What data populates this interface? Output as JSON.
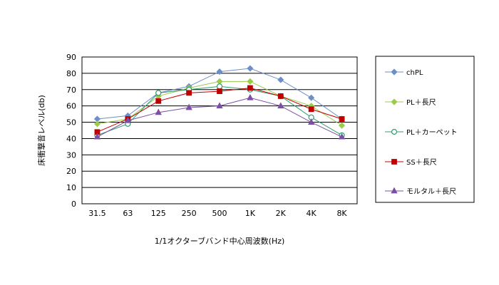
{
  "chart_data": {
    "type": "line",
    "title": "",
    "xlabel": "1/1オクターブバンド中心周波数(Hz)",
    "ylabel": "床衝撃音レベル(db)",
    "ylim": [
      0,
      90
    ],
    "yticks": [
      0,
      10,
      20,
      30,
      40,
      50,
      60,
      70,
      80,
      90
    ],
    "categories": [
      "31.5",
      "63",
      "125",
      "250",
      "500",
      "1K",
      "2K",
      "4K",
      "8K"
    ],
    "grid": true,
    "legend_position": "right",
    "series": [
      {
        "name": "chPL",
        "color": "#6E8EC8",
        "marker": "diamond",
        "values": [
          52,
          54,
          68,
          72,
          81,
          83,
          76,
          65,
          52
        ]
      },
      {
        "name": "PL＋長尺",
        "color": "#9BCB4B",
        "marker": "diamond",
        "values": [
          49,
          52,
          66,
          71,
          75,
          75,
          66,
          60,
          48
        ]
      },
      {
        "name": "PL＋カーペット",
        "color": "#2E9E6F",
        "marker": "circle-open",
        "values": [
          42,
          49,
          68,
          70,
          72,
          70,
          66,
          53,
          42
        ]
      },
      {
        "name": "SS＋長尺",
        "color": "#C00000",
        "marker": "square",
        "values": [
          44,
          52,
          63,
          68,
          69,
          71,
          66,
          58,
          52
        ]
      },
      {
        "name": "モルタル＋長尺",
        "color": "#7B4FA6",
        "marker": "triangle",
        "values": [
          41,
          51,
          56,
          59,
          60,
          65,
          60,
          50,
          41
        ]
      }
    ]
  }
}
